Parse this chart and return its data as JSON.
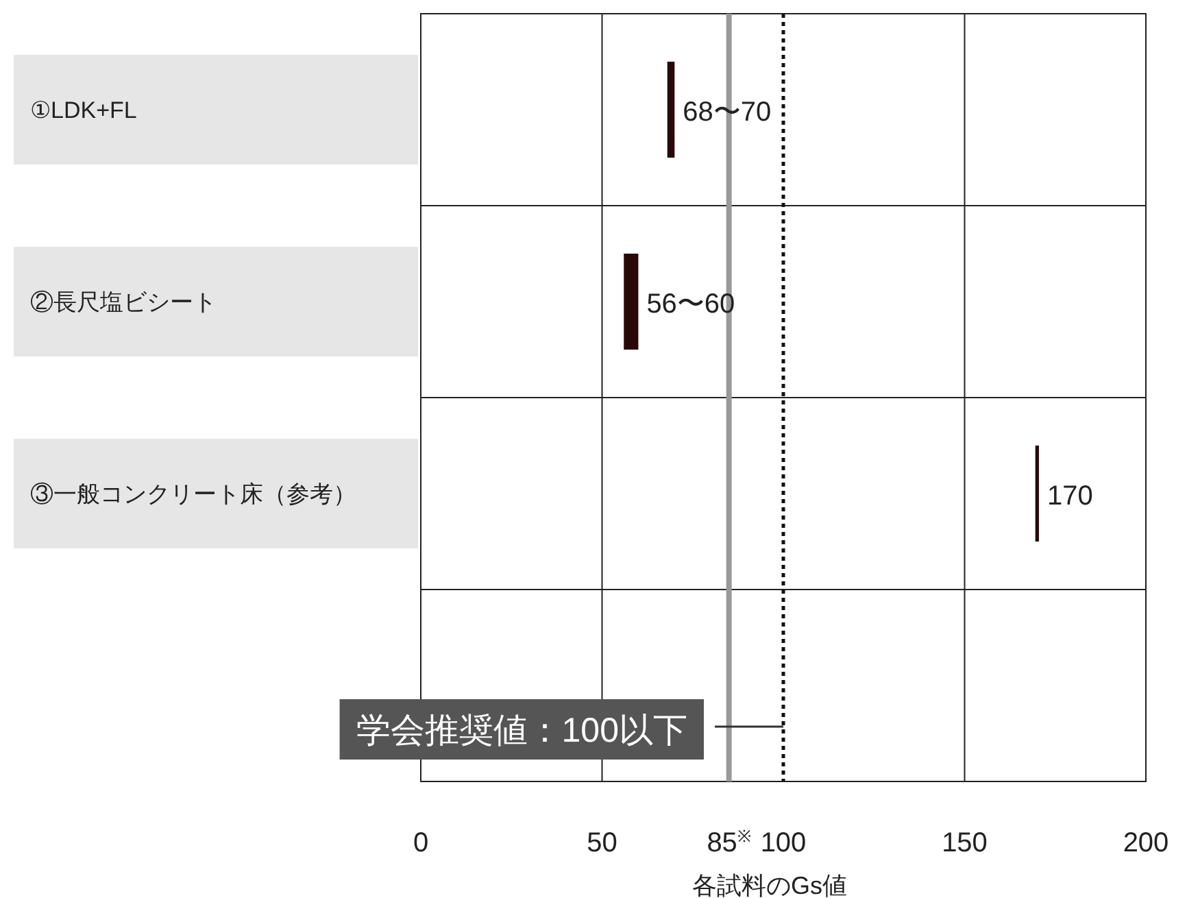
{
  "chart_data": {
    "type": "bar",
    "orientation": "horizontal",
    "categories": [
      "①LDK+FL",
      "②長尺塩ビシート",
      "③一般コンクリート床（参考）",
      null
    ],
    "base": [
      68,
      56,
      169.5,
      null
    ],
    "values": [
      2,
      4,
      1,
      null
    ],
    "color": "#2a0808",
    "annotations": [
      {
        "text": "68〜70",
        "x": 70,
        "y": "①LDK+FL"
      },
      {
        "text": "56〜60",
        "x": 60,
        "y": "②長尺塩ビシート"
      },
      {
        "text": "170",
        "x": 170.5,
        "y": "③一般コンクリート床（参考）"
      }
    ],
    "xlim": [
      0,
      200
    ],
    "xticks": [
      0,
      50,
      {
        "value": 85,
        "label": "85$^{※}$"
      },
      100,
      150,
      200
    ],
    "xlabel": "各試料のGs値",
    "grid": true,
    "ref_lines": [
      {
        "axis": "x",
        "value": 85,
        "color": "#999999",
        "line_style": "solid"
      },
      {
        "axis": "x",
        "value": 100,
        "color": "#111111",
        "line_style": "dotted",
        "label": "学会推奨値：100以下"
      }
    ]
  }
}
